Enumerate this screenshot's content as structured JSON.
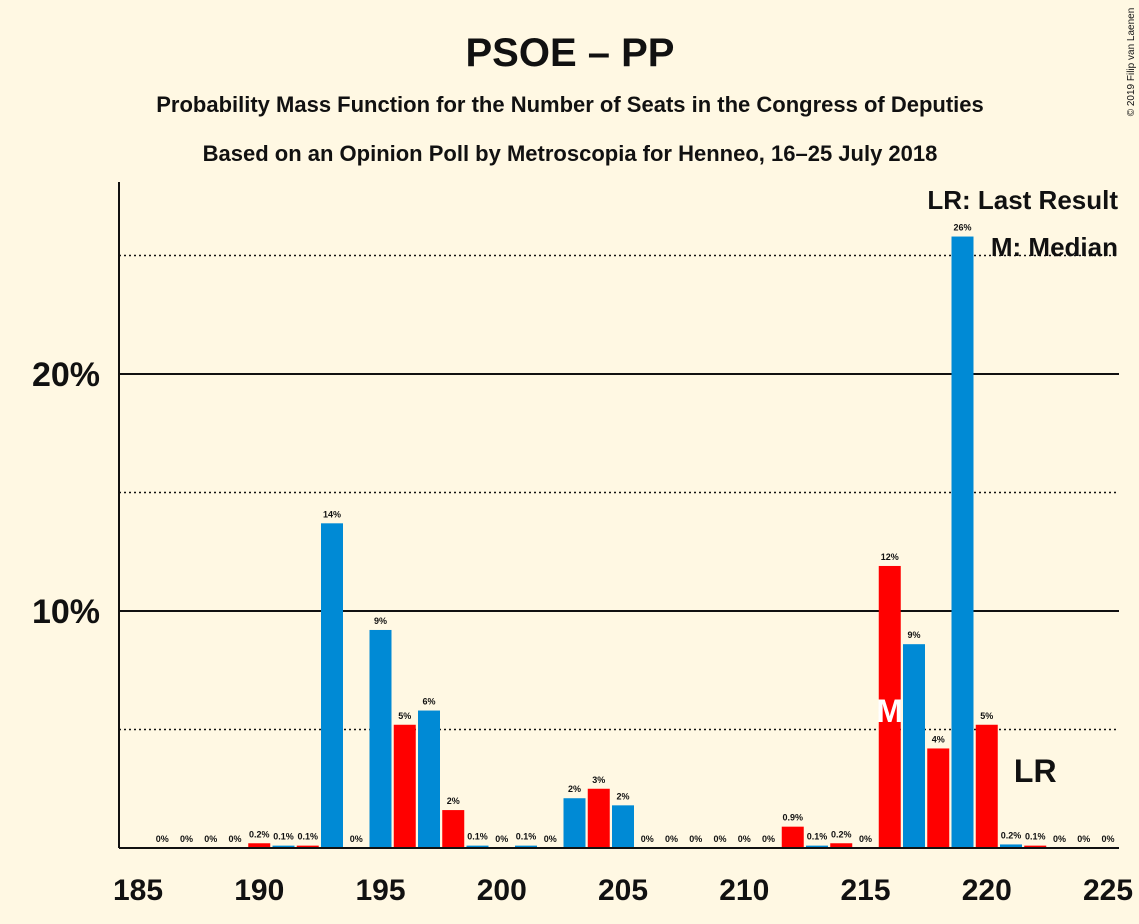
{
  "chart_data": {
    "type": "bar",
    "title": "PSOE – PP",
    "subtitle": "Probability Mass Function for the Number of Seats in the Congress of Deputies",
    "subtitle2": "Based on an Opinion Poll by Metroscopia for Henneo, 16–25 July 2018",
    "copyright": "© 2019 Filip van Laenen",
    "x_ticks": [
      185,
      190,
      195,
      200,
      205,
      210,
      215,
      220,
      225
    ],
    "y_ticks": [
      {
        "value": 10,
        "label": "10%"
      },
      {
        "value": 20,
        "label": "20%"
      }
    ],
    "dotted_lines": [
      5,
      15,
      25
    ],
    "xlim": [
      185,
      225
    ],
    "ylim": [
      0,
      28
    ],
    "grid": "horizontal",
    "legend": [
      "LR: Last Result",
      "M: Median"
    ],
    "legend_position": "top-right",
    "last_result_seat": 222,
    "last_result_label": "LR",
    "median_seat": 216,
    "median_label": "M",
    "colors": {
      "blue": "#008AD5",
      "red": "#FF0000",
      "background": "#FFF8E3"
    },
    "bars": [
      {
        "seat": 186,
        "value": 0,
        "label": "0%",
        "color": "red"
      },
      {
        "seat": 187,
        "value": 0,
        "label": "0%",
        "color": "blue"
      },
      {
        "seat": 188,
        "value": 0,
        "label": "0%",
        "color": "red"
      },
      {
        "seat": 189,
        "value": 0,
        "label": "0%",
        "color": "blue"
      },
      {
        "seat": 190,
        "value": 0.2,
        "label": "0.2%",
        "color": "red"
      },
      {
        "seat": 191,
        "value": 0.1,
        "label": "0.1%",
        "color": "blue"
      },
      {
        "seat": 192,
        "value": 0.1,
        "label": "0.1%",
        "color": "red"
      },
      {
        "seat": 193,
        "value": 13.7,
        "label": "14%",
        "color": "blue"
      },
      {
        "seat": 194,
        "value": 0,
        "label": "0%",
        "color": "red"
      },
      {
        "seat": 195,
        "value": 9.2,
        "label": "9%",
        "color": "blue"
      },
      {
        "seat": 196,
        "value": 5.2,
        "label": "5%",
        "color": "red"
      },
      {
        "seat": 197,
        "value": 5.8,
        "label": "6%",
        "color": "blue"
      },
      {
        "seat": 198,
        "value": 1.6,
        "label": "2%",
        "color": "red"
      },
      {
        "seat": 199,
        "value": 0.1,
        "label": "0.1%",
        "color": "blue"
      },
      {
        "seat": 200,
        "value": 0,
        "label": "0%",
        "color": "red"
      },
      {
        "seat": 201,
        "value": 0.1,
        "label": "0.1%",
        "color": "blue"
      },
      {
        "seat": 202,
        "value": 0,
        "label": "0%",
        "color": "red"
      },
      {
        "seat": 203,
        "value": 2.1,
        "label": "2%",
        "color": "blue"
      },
      {
        "seat": 204,
        "value": 2.5,
        "label": "3%",
        "color": "red"
      },
      {
        "seat": 205,
        "value": 1.8,
        "label": "2%",
        "color": "blue"
      },
      {
        "seat": 206,
        "value": 0,
        "label": "0%",
        "color": "red"
      },
      {
        "seat": 207,
        "value": 0,
        "label": "0%",
        "color": "blue"
      },
      {
        "seat": 208,
        "value": 0,
        "label": "0%",
        "color": "red"
      },
      {
        "seat": 209,
        "value": 0,
        "label": "0%",
        "color": "blue"
      },
      {
        "seat": 210,
        "value": 0,
        "label": "0%",
        "color": "red"
      },
      {
        "seat": 211,
        "value": 0,
        "label": "0%",
        "color": "blue"
      },
      {
        "seat": 212,
        "value": 0.9,
        "label": "0.9%",
        "color": "red"
      },
      {
        "seat": 213,
        "value": 0.1,
        "label": "0.1%",
        "color": "blue"
      },
      {
        "seat": 214,
        "value": 0.2,
        "label": "0.2%",
        "color": "red"
      },
      {
        "seat": 215,
        "value": 0,
        "label": "0%",
        "color": "blue"
      },
      {
        "seat": 216,
        "value": 11.9,
        "label": "12%",
        "color": "red"
      },
      {
        "seat": 217,
        "value": 8.6,
        "label": "9%",
        "color": "blue"
      },
      {
        "seat": 218,
        "value": 4.2,
        "label": "4%",
        "color": "red"
      },
      {
        "seat": 219,
        "value": 25.8,
        "label": "26%",
        "color": "blue"
      },
      {
        "seat": 220,
        "value": 5.2,
        "label": "5%",
        "color": "red"
      },
      {
        "seat": 221,
        "value": 0.15,
        "label": "0.2%",
        "color": "blue"
      },
      {
        "seat": 222,
        "value": 0.1,
        "label": "0.1%",
        "color": "red"
      },
      {
        "seat": 223,
        "value": 0,
        "label": "0%",
        "color": "blue"
      },
      {
        "seat": 224,
        "value": 0,
        "label": "0%",
        "color": "red"
      },
      {
        "seat": 225,
        "value": 0,
        "label": "0%",
        "color": "blue"
      }
    ]
  }
}
